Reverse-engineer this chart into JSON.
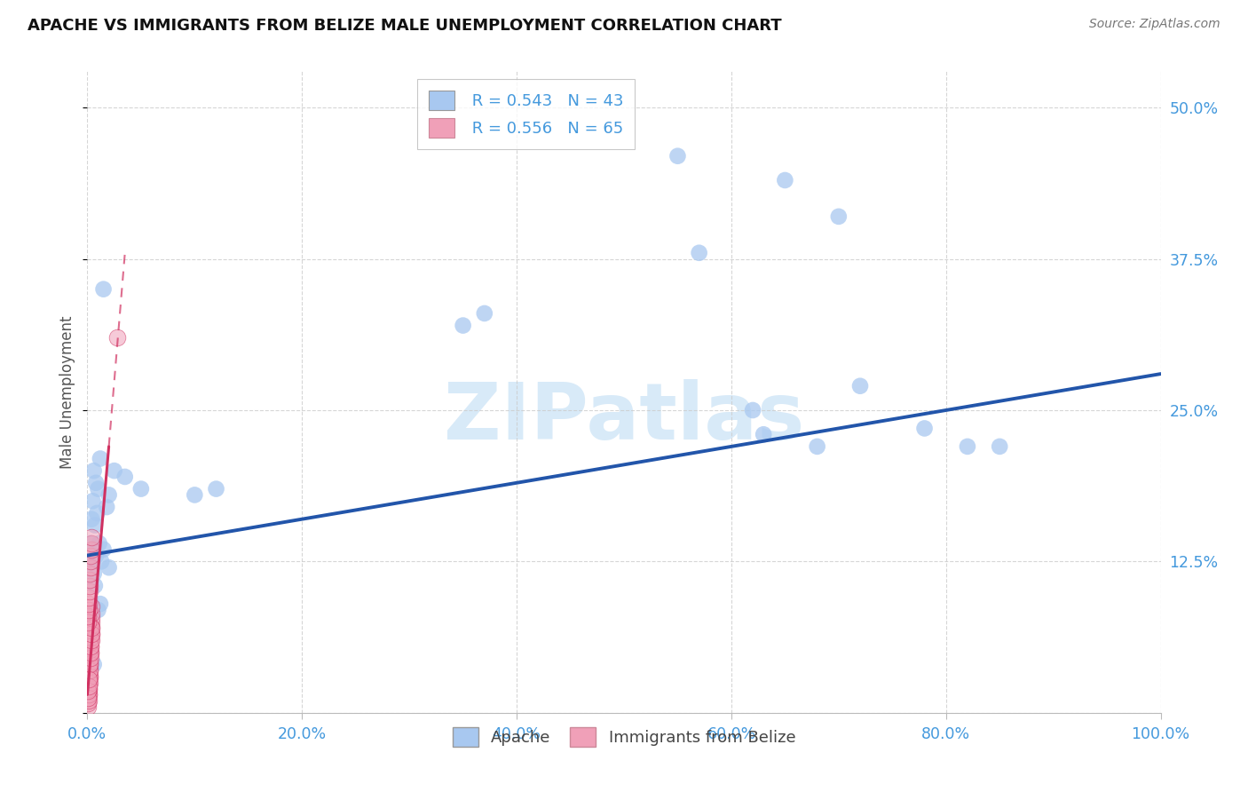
{
  "title": "APACHE VS IMMIGRANTS FROM BELIZE MALE UNEMPLOYMENT CORRELATION CHART",
  "source": "Source: ZipAtlas.com",
  "ylabel": "Male Unemployment",
  "legend_label1": "Apache",
  "legend_label2": "Immigrants from Belize",
  "R1": "0.543",
  "N1": "43",
  "R2": "0.556",
  "N2": "65",
  "color_apache": "#a8c8f0",
  "color_belize": "#f0a0b8",
  "line_color_apache": "#2255aa",
  "line_color_belize": "#d03060",
  "xlim": [
    0.0,
    100.0
  ],
  "ylim": [
    0.0,
    53.0
  ],
  "ytick_vals": [
    0.0,
    12.5,
    25.0,
    37.5,
    50.0
  ],
  "ytick_labels": [
    "",
    "12.5%",
    "25.0%",
    "37.5%",
    "50.0%"
  ],
  "xtick_vals": [
    0.0,
    20.0,
    40.0,
    60.0,
    80.0,
    100.0
  ],
  "xtick_labels": [
    "0.0%",
    "20.0%",
    "40.0%",
    "60.0%",
    "80.0%",
    "100.0%"
  ],
  "tick_color": "#4499dd",
  "grid_color": "#cccccc",
  "apache_x": [
    1.5,
    3.5,
    5.0,
    2.0,
    1.8,
    1.2,
    0.8,
    0.6,
    1.0,
    0.5,
    0.4,
    0.7,
    0.9,
    1.1,
    1.3,
    0.3,
    0.6,
    0.8,
    1.5,
    2.0,
    2.5,
    0.5,
    0.7,
    1.0,
    1.2,
    0.4,
    0.3,
    0.6,
    10.0,
    12.0,
    35.0,
    37.0,
    55.0,
    65.0,
    70.0,
    57.0,
    62.0,
    72.0,
    78.0,
    82.0,
    63.0,
    68.0,
    85.0
  ],
  "apache_y": [
    35.0,
    19.5,
    18.5,
    18.0,
    17.0,
    21.0,
    19.0,
    20.0,
    18.5,
    17.5,
    16.0,
    15.5,
    16.5,
    14.0,
    12.5,
    14.0,
    11.5,
    13.0,
    13.5,
    12.0,
    20.0,
    12.5,
    10.5,
    8.5,
    9.0,
    8.0,
    5.0,
    4.0,
    18.0,
    18.5,
    32.0,
    33.0,
    46.0,
    44.0,
    41.0,
    38.0,
    25.0,
    27.0,
    23.5,
    22.0,
    23.0,
    22.0,
    22.0
  ],
  "belize_x": [
    0.05,
    0.08,
    0.1,
    0.12,
    0.15,
    0.18,
    0.2,
    0.22,
    0.25,
    0.28,
    0.3,
    0.32,
    0.35,
    0.38,
    0.4,
    0.05,
    0.08,
    0.1,
    0.12,
    0.15,
    0.18,
    0.2,
    0.22,
    0.25,
    0.28,
    0.3,
    0.32,
    0.35,
    0.38,
    0.4,
    0.05,
    0.08,
    0.1,
    0.12,
    0.15,
    0.18,
    0.2,
    0.22,
    0.25,
    0.28,
    0.3,
    0.32,
    0.35,
    0.38,
    0.4,
    0.05,
    0.08,
    0.1,
    0.12,
    0.15,
    0.18,
    0.2,
    0.22,
    0.25,
    0.28,
    0.3,
    0.32,
    0.35,
    0.38,
    0.4,
    0.05,
    0.08,
    0.1,
    0.12,
    2.8
  ],
  "belize_y": [
    1.0,
    1.2,
    1.5,
    2.0,
    2.5,
    3.0,
    3.5,
    4.0,
    4.5,
    5.0,
    5.5,
    6.0,
    6.5,
    7.0,
    7.5,
    1.8,
    2.2,
    2.8,
    3.2,
    3.8,
    4.2,
    4.8,
    5.2,
    5.8,
    6.2,
    6.8,
    7.2,
    7.8,
    8.2,
    8.8,
    0.5,
    0.8,
    1.0,
    1.5,
    2.0,
    2.5,
    3.0,
    3.5,
    4.0,
    4.5,
    5.0,
    5.5,
    6.0,
    6.5,
    7.0,
    7.5,
    8.0,
    8.5,
    9.0,
    9.5,
    10.0,
    10.5,
    11.0,
    11.5,
    12.0,
    12.5,
    13.0,
    13.5,
    14.0,
    14.5,
    1.2,
    1.8,
    2.2,
    2.8,
    31.0
  ],
  "apache_line_x0": 0.0,
  "apache_line_y0": 13.0,
  "apache_line_x1": 100.0,
  "apache_line_y1": 28.0,
  "belize_line_solid_x0": 0.0,
  "belize_line_solid_y0": 1.5,
  "belize_line_solid_x1": 2.0,
  "belize_line_solid_y1": 22.0,
  "belize_line_dash_x0": 2.0,
  "belize_line_dash_y0": 22.0,
  "belize_line_dash_x1": 3.5,
  "belize_line_dash_y1": 38.0
}
